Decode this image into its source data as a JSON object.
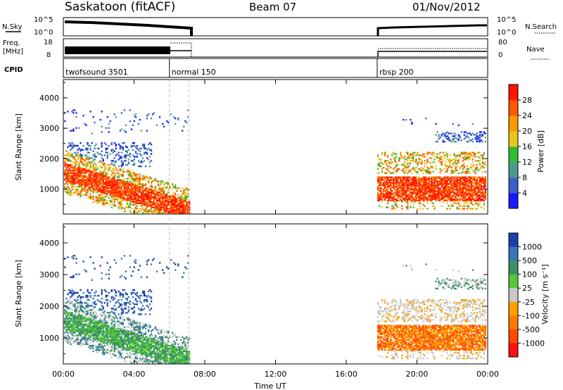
{
  "header": {
    "station": "Saskatoon (fitACF)",
    "beam": "Beam 07",
    "date": "01/Nov/2012"
  },
  "strip_labels": {
    "nsky": "N.Sky",
    "freq_top": "Freq.",
    "freq_unit": "[MHz]",
    "cpid": "CPID",
    "nsearch": "N.Search",
    "nave": "Nave",
    "nsky_ticks": [
      "10^5",
      "10^0"
    ],
    "freq_ticks": [
      "18",
      "8"
    ],
    "nave_ticks": [
      "80",
      "0"
    ]
  },
  "cpid_segments": [
    {
      "label": "twofsound 3501",
      "start_hour": 0
    },
    {
      "label": "normal 150",
      "start_hour": 6
    },
    {
      "label": "rbsp 200",
      "start_hour": 17.75
    }
  ],
  "data_gap_hours": [
    7.1,
    17.75
  ],
  "chart_data": [
    {
      "type": "heatmap",
      "title": "Power",
      "xlabel": "Time UT",
      "ylabel": "Slant Range [km]",
      "xlim": [
        0,
        24
      ],
      "ylim": [
        180,
        4600
      ],
      "x_ticks": [
        "00:00",
        "04:00",
        "08:00",
        "12:00",
        "16:00",
        "20:00",
        "00:00"
      ],
      "y_ticks": [
        "1000",
        "2000",
        "3000",
        "4000"
      ],
      "colorbar": {
        "label": "Power [dB]",
        "ticks": [
          "4",
          "8",
          "12",
          "16",
          "20",
          "24",
          "28"
        ],
        "colors": [
          "#1a1aff",
          "#3a5fcc",
          "#4a9a8a",
          "#33bb33",
          "#e6c619",
          "#ff9900",
          "#ff5a00",
          "#ff1500"
        ]
      }
    },
    {
      "type": "heatmap",
      "title": "Velocity",
      "xlabel": "Time UT",
      "ylabel": "Slant Range [km]",
      "xlim": [
        0,
        24
      ],
      "ylim": [
        180,
        4600
      ],
      "x_ticks": [
        "00:00",
        "04:00",
        "08:00",
        "12:00",
        "16:00",
        "20:00",
        "00:00"
      ],
      "y_ticks": [
        "1000",
        "2000",
        "3000",
        "4000"
      ],
      "colorbar": {
        "label": "Velocity [m s⁻¹]",
        "ticks": [
          "1000",
          "500",
          "100",
          "25",
          "-25",
          "-100",
          "-500",
          "-1000"
        ],
        "colors": [
          "#1a3fa8",
          "#3a73b8",
          "#3c8f6a",
          "#55c83a",
          "#c8c8c8",
          "#ff9f00",
          "#ff7a00",
          "#ff4a00",
          "#ff1010"
        ]
      }
    }
  ]
}
